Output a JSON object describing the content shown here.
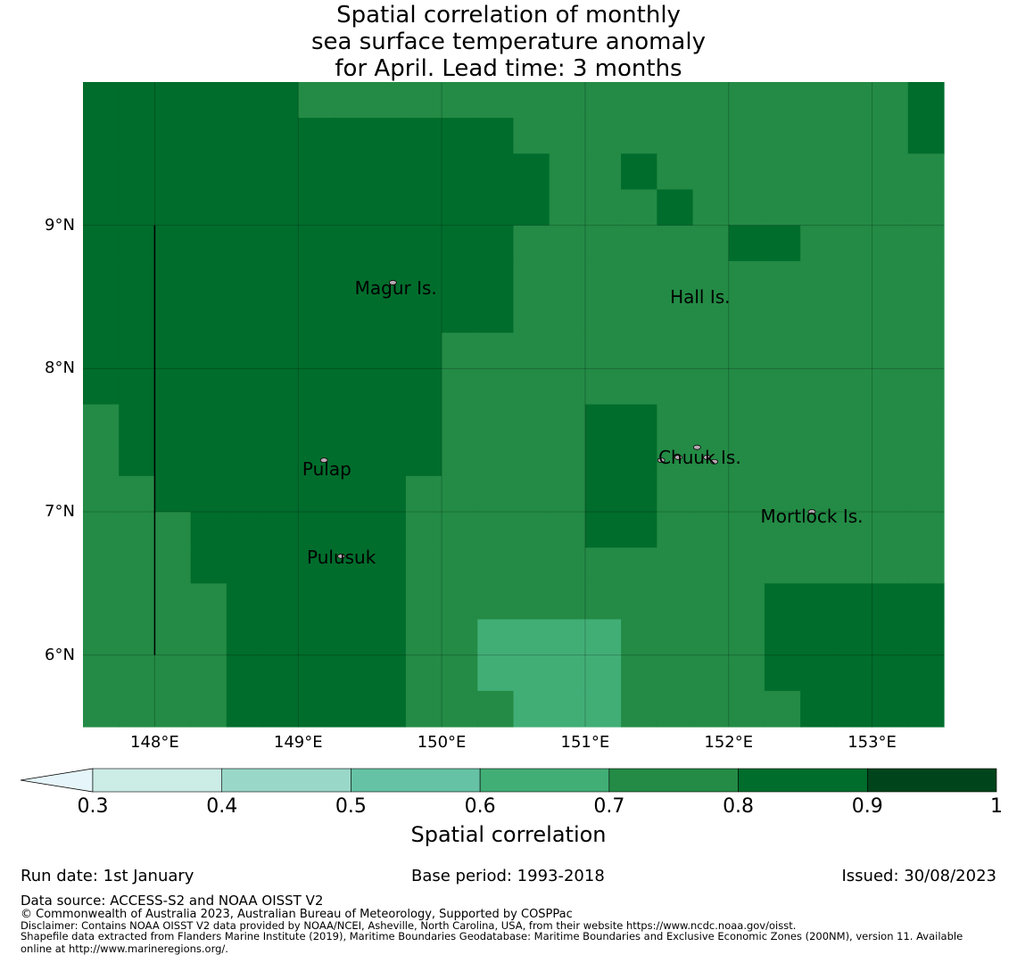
{
  "title": {
    "line1": "Spatial correlation of monthly",
    "line2": "sea surface temperature anomaly",
    "line3": "for April. Lead time: 3 months"
  },
  "map": {
    "lon_range": [
      147.5,
      153.5
    ],
    "lat_range": [
      5.5,
      10.0
    ],
    "cell_size_deg": 0.25,
    "lat_ticks": [
      {
        "value": 9,
        "label": "9°N"
      },
      {
        "value": 8,
        "label": "8°N"
      },
      {
        "value": 7,
        "label": "7°N"
      },
      {
        "value": 6,
        "label": "6°N"
      }
    ],
    "lon_ticks": [
      {
        "value": 148,
        "label": "148°E"
      },
      {
        "value": 149,
        "label": "149°E"
      },
      {
        "value": 150,
        "label": "150°E"
      },
      {
        "value": 151,
        "label": "151°E"
      },
      {
        "value": 152,
        "label": "152°E"
      },
      {
        "value": 153,
        "label": "153°E"
      }
    ],
    "boundary_line": {
      "lon": 148.0,
      "lat_from": 6.0,
      "lat_to": 9.0
    },
    "places": [
      {
        "name": "Magur Is.",
        "lon": 149.68,
        "lat": 8.56
      },
      {
        "name": "Hall Is.",
        "lon": 151.8,
        "lat": 8.5
      },
      {
        "name": "Pulap",
        "lon": 149.2,
        "lat": 7.3
      },
      {
        "name": "Chuuk Is.",
        "lon": 151.8,
        "lat": 7.38
      },
      {
        "name": "Mortlock Is.",
        "lon": 152.58,
        "lat": 6.97
      },
      {
        "name": "Pulusuk",
        "lon": 149.3,
        "lat": 6.68
      }
    ]
  },
  "colorbar": {
    "extend_color": "#e5f5f9",
    "bins": [
      {
        "from": 0.3,
        "to": 0.4,
        "color": "#ccece6"
      },
      {
        "from": 0.4,
        "to": 0.5,
        "color": "#99d8c9"
      },
      {
        "from": 0.5,
        "to": 0.6,
        "color": "#66c2a4"
      },
      {
        "from": 0.6,
        "to": 0.7,
        "color": "#41ae76"
      },
      {
        "from": 0.7,
        "to": 0.8,
        "color": "#238b45"
      },
      {
        "from": 0.8,
        "to": 0.9,
        "color": "#006d2c"
      },
      {
        "from": 0.9,
        "to": 1.0,
        "color": "#00441b"
      }
    ],
    "ticks": [
      "0.3",
      "0.4",
      "0.5",
      "0.6",
      "0.7",
      "0.8",
      "0.9",
      "1"
    ],
    "label": "Spatial correlation"
  },
  "footer": {
    "run_date": "Run date: 1st January",
    "base_period": "Base period: 1993-2018",
    "issued": "Issued: 30/08/2023",
    "data_source": "Data source: ACCESS-S2 and NOAA OISST V2",
    "copyright": "© Commonwealth of Australia 2023, Australian Bureau of Meteorology, Supported by COSPPac",
    "disclaimer": "Disclaimer: Contains NOAA OISST V2 data provided by NOAA/NCEI, Asheville, North Carolina, USA, from their website https://www.ncdc.noaa.gov/oisst.",
    "shapefile_1": "Shapefile data extracted from Flanders Marine Institute (2019), Maritime Boundaries Geodatabase: Maritime Boundaries and Exclusive Economic Zones (200NM), version 11. Available",
    "shapefile_2": "online at http://www.marineregions.org/."
  }
}
